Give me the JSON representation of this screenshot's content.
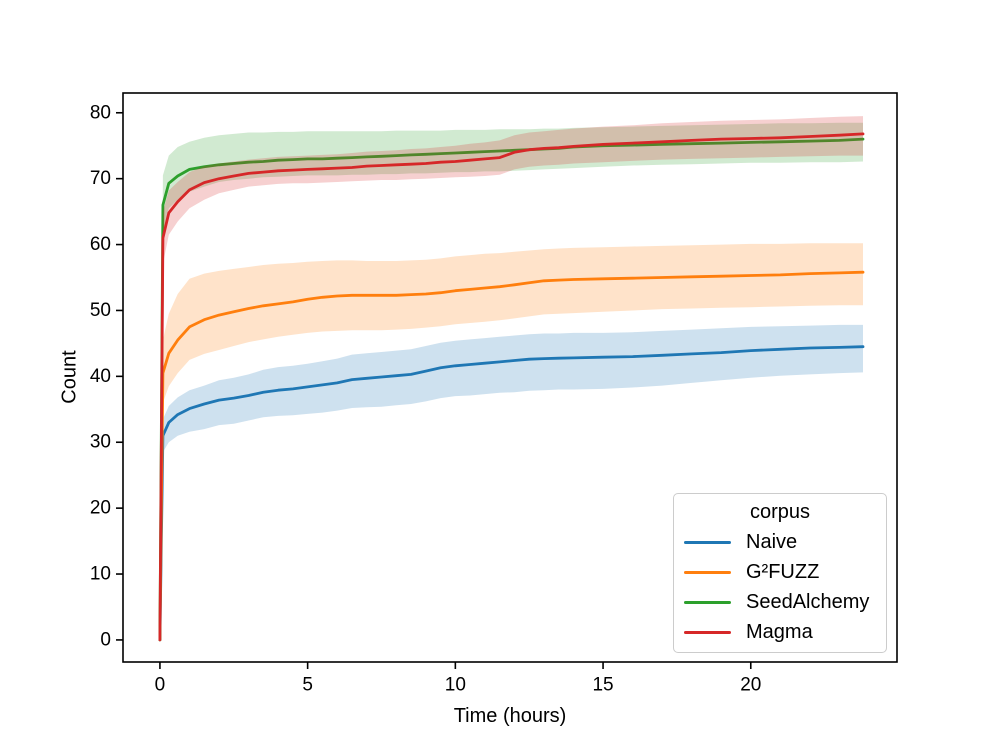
{
  "figure": {
    "background": "#ffffff",
    "axes_border_color": "#000000"
  },
  "chart_data": {
    "type": "line",
    "title": "",
    "xlabel": "Time (hours)",
    "ylabel": "Count",
    "xlim": [
      -1.25,
      24.95
    ],
    "ylim": [
      -3.35,
      83.0
    ],
    "xticks": [
      0,
      5,
      10,
      15,
      20
    ],
    "yticks": [
      0,
      10,
      20,
      30,
      40,
      50,
      60,
      70,
      80
    ],
    "grid": false,
    "band_alpha": 0.22,
    "legend": {
      "title": "corpus",
      "position": "lower right"
    },
    "x": [
      0,
      0.1,
      0.3,
      0.6,
      1,
      1.5,
      2,
      2.5,
      3,
      3.5,
      4,
      4.5,
      5,
      5.5,
      6,
      6.5,
      7,
      7.5,
      8,
      8.5,
      9,
      9.5,
      10,
      10.5,
      11,
      11.5,
      12,
      12.5,
      13,
      13.5,
      14,
      15,
      16,
      17,
      18,
      19,
      20,
      21,
      22,
      23,
      23.8
    ],
    "series": [
      {
        "name": "Naive",
        "color": "#1f77b4",
        "y": [
          0,
          31,
          33,
          34.2,
          35.1,
          35.8,
          36.4,
          36.7,
          37.1,
          37.6,
          37.9,
          38.1,
          38.4,
          38.7,
          39,
          39.5,
          39.7,
          39.9,
          40.1,
          40.3,
          40.8,
          41.3,
          41.6,
          41.8,
          42,
          42.2,
          42.4,
          42.6,
          42.7,
          42.75,
          42.8,
          42.9,
          43,
          43.2,
          43.4,
          43.6,
          43.9,
          44.1,
          44.3,
          44.4,
          44.5
        ],
        "lo": [
          0,
          28.5,
          30,
          31,
          31.6,
          32,
          32.6,
          32.8,
          33.3,
          33.8,
          34,
          34.1,
          34.3,
          34.5,
          34.8,
          35.2,
          35.3,
          35.4,
          35.6,
          35.8,
          36.2,
          36.7,
          37,
          37.1,
          37.3,
          37.5,
          37.6,
          37.8,
          37.9,
          38,
          38,
          38.1,
          38.3,
          38.6,
          39,
          39.4,
          39.8,
          40.1,
          40.3,
          40.5,
          40.6
        ],
        "hi": [
          0,
          33.5,
          35.5,
          36.8,
          37.9,
          38.6,
          39.4,
          39.8,
          40.3,
          41,
          41.4,
          41.6,
          41.9,
          42.3,
          42.7,
          43.3,
          43.5,
          43.7,
          43.9,
          44.1,
          44.6,
          45.1,
          45.4,
          45.6,
          45.8,
          46,
          46.2,
          46.4,
          46.5,
          46.5,
          46.6,
          46.6,
          46.7,
          46.9,
          47.1,
          47.3,
          47.5,
          47.6,
          47.7,
          47.8,
          47.8
        ]
      },
      {
        "name": "G²FUZZ",
        "color": "#ff7f0e",
        "y": [
          0,
          40.5,
          43.5,
          45.5,
          47.5,
          48.6,
          49.3,
          49.8,
          50.3,
          50.7,
          51,
          51.3,
          51.7,
          52,
          52.2,
          52.3,
          52.3,
          52.3,
          52.3,
          52.4,
          52.5,
          52.7,
          53,
          53.2,
          53.4,
          53.6,
          53.9,
          54.2,
          54.5,
          54.6,
          54.7,
          54.8,
          54.9,
          55,
          55.1,
          55.2,
          55.3,
          55.4,
          55.6,
          55.7,
          55.8
        ],
        "lo": [
          0,
          36,
          38.5,
          40.5,
          42.5,
          43.4,
          44,
          44.6,
          45.2,
          45.6,
          46,
          46.3,
          46.6,
          46.8,
          46.9,
          47,
          47,
          47,
          47.1,
          47.2,
          47.4,
          47.6,
          47.9,
          48.1,
          48.3,
          48.5,
          48.8,
          49.1,
          49.4,
          49.5,
          49.6,
          49.8,
          50,
          50.2,
          50.3,
          50.4,
          50.5,
          50.6,
          50.7,
          50.8,
          50.8
        ],
        "hi": [
          0,
          45.5,
          49.5,
          52.5,
          54.8,
          55.6,
          56,
          56.3,
          56.6,
          56.9,
          57.1,
          57.2,
          57.4,
          57.5,
          57.6,
          57.6,
          57.5,
          57.5,
          57.5,
          57.6,
          57.7,
          57.9,
          58.2,
          58.4,
          58.6,
          58.7,
          58.9,
          59.1,
          59.3,
          59.4,
          59.5,
          59.6,
          59.7,
          59.8,
          59.9,
          60,
          60.1,
          60.1,
          60.2,
          60.2,
          60.2
        ]
      },
      {
        "name": "SeedAlchemy",
        "color": "#2ca02c",
        "y": [
          0,
          66,
          69.3,
          70.4,
          71.4,
          71.8,
          72.1,
          72.3,
          72.5,
          72.6,
          72.8,
          72.9,
          73,
          73,
          73.1,
          73.2,
          73.3,
          73.4,
          73.5,
          73.6,
          73.7,
          73.8,
          73.9,
          74,
          74.1,
          74.2,
          74.3,
          74.4,
          74.5,
          74.6,
          74.8,
          75,
          75.1,
          75.2,
          75.3,
          75.4,
          75.5,
          75.6,
          75.7,
          75.8,
          76
        ],
        "lo": [
          0,
          62,
          65.5,
          66.8,
          68,
          68.8,
          69.5,
          69.8,
          70,
          70.2,
          70.3,
          70.4,
          70.5,
          70.5,
          70.5,
          70.6,
          70.6,
          70.7,
          70.7,
          70.8,
          70.8,
          70.9,
          71,
          71,
          71.1,
          71.1,
          71.2,
          71.3,
          71.4,
          71.5,
          71.6,
          71.8,
          72,
          72.1,
          72.2,
          72.3,
          72.4,
          72.4,
          72.5,
          72.5,
          72.6
        ],
        "hi": [
          0,
          70.5,
          73.5,
          74.8,
          75.6,
          76.2,
          76.6,
          76.8,
          77,
          77,
          77.1,
          77.1,
          77.2,
          77.2,
          77.2,
          77.2,
          77.2,
          77.2,
          77.3,
          77.3,
          77.3,
          77.3,
          77.4,
          77.4,
          77.4,
          77.5,
          77.5,
          77.5,
          77.6,
          77.6,
          77.7,
          77.8,
          77.9,
          78,
          78.1,
          78.2,
          78.3,
          78.4,
          78.4,
          78.5,
          78.5
        ]
      },
      {
        "name": "Magma",
        "color": "#d62728",
        "y": [
          0,
          61,
          64.8,
          66.5,
          68.3,
          69.4,
          70,
          70.4,
          70.8,
          71,
          71.2,
          71.3,
          71.4,
          71.5,
          71.6,
          71.7,
          71.9,
          72,
          72.1,
          72.2,
          72.3,
          72.5,
          72.6,
          72.8,
          73,
          73.2,
          74,
          74.4,
          74.6,
          74.7,
          74.9,
          75.2,
          75.4,
          75.6,
          75.8,
          76,
          76.1,
          76.2,
          76.4,
          76.6,
          76.8
        ],
        "lo": [
          0,
          57,
          61.5,
          63.5,
          65.5,
          66.8,
          67.8,
          68.3,
          68.8,
          69,
          69.2,
          69.3,
          69.3,
          69.4,
          69.5,
          69.6,
          69.7,
          69.8,
          69.8,
          69.9,
          70,
          70.1,
          70.2,
          70.3,
          70.4,
          70.6,
          71.4,
          71.8,
          72,
          72.1,
          72.3,
          72.5,
          72.7,
          72.9,
          73,
          73.1,
          73.2,
          73.3,
          73.4,
          73.5,
          73.5
        ],
        "hi": [
          0,
          65,
          68.2,
          69.5,
          71,
          71.9,
          72.3,
          72.6,
          72.9,
          73.1,
          73.3,
          73.4,
          73.5,
          73.6,
          73.7,
          73.9,
          74.1,
          74.2,
          74.3,
          74.5,
          74.6,
          74.8,
          75,
          75.3,
          75.5,
          75.8,
          76.6,
          77,
          77.2,
          77.4,
          77.6,
          77.9,
          78.1,
          78.4,
          78.6,
          78.8,
          78.9,
          79,
          79.2,
          79.4,
          79.5
        ]
      }
    ]
  }
}
